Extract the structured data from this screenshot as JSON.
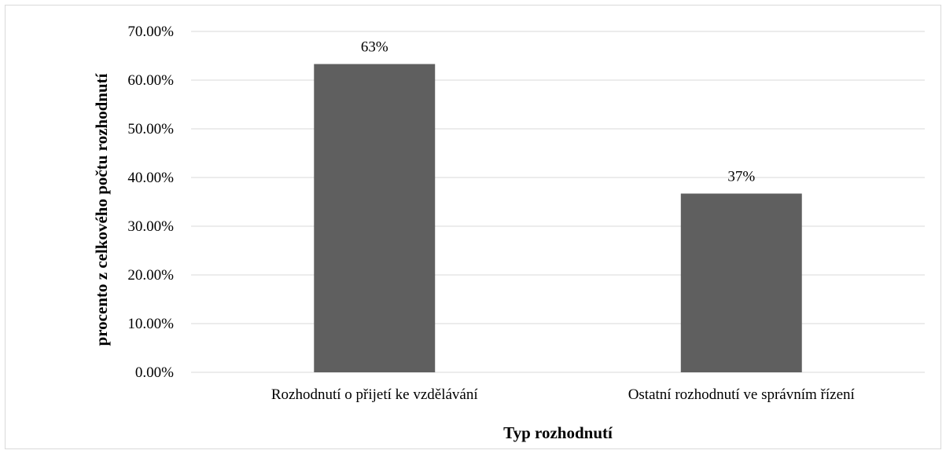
{
  "chart_data": {
    "type": "bar",
    "categories": [
      "Rozhodnutí o přijetí ke vzdělávání",
      "Ostatní rozhodnutí ve správním řízení"
    ],
    "values": [
      0.633,
      0.367
    ],
    "data_labels": [
      "63%",
      "37%"
    ],
    "xlabel": "Typ rozhodnutí",
    "ylabel": "procento z celkového počtu rozhodnutí",
    "ylim": [
      0,
      0.7
    ],
    "y_ticks": [
      0,
      0.1,
      0.2,
      0.3,
      0.4,
      0.5,
      0.6,
      0.7
    ],
    "y_tick_labels": [
      "0.00%",
      "10.00%",
      "20.00%",
      "30.00%",
      "40.00%",
      "50.00%",
      "60.00%",
      "70.00%"
    ],
    "grid": true,
    "bar_color": "#5f5f5f"
  }
}
